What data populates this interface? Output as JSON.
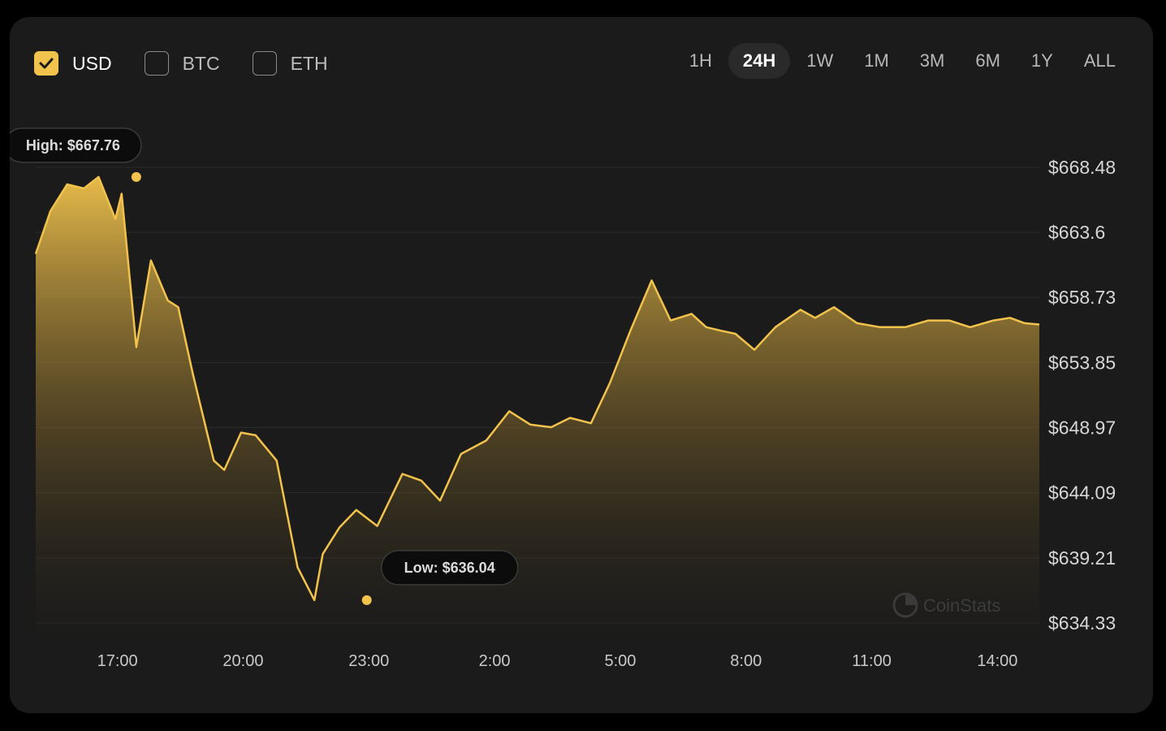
{
  "currencies": [
    {
      "label": "USD",
      "checked": true
    },
    {
      "label": "BTC",
      "checked": false
    },
    {
      "label": "ETH",
      "checked": false
    }
  ],
  "ranges": [
    {
      "label": "1H",
      "active": false
    },
    {
      "label": "24H",
      "active": true
    },
    {
      "label": "1W",
      "active": false
    },
    {
      "label": "1M",
      "active": false
    },
    {
      "label": "3M",
      "active": false
    },
    {
      "label": "6M",
      "active": false
    },
    {
      "label": "1Y",
      "active": false
    },
    {
      "label": "ALL",
      "active": false
    }
  ],
  "colors": {
    "accent": "#f1c34d",
    "card": "#1b1b1b",
    "grid": "#2a2a2a"
  },
  "watermark": "CoinStats",
  "chart_data": {
    "type": "area",
    "series": [
      {
        "currency": "USD",
        "x": [
          15.05,
          15.4,
          15.8,
          16.2,
          16.55,
          16.95,
          17.1,
          17.45,
          17.8,
          18.2,
          18.45,
          18.8,
          19.3,
          19.55,
          19.95,
          20.3,
          20.8,
          21.3,
          21.7,
          21.9,
          22.3,
          22.7,
          23.2,
          23.8,
          24.25,
          24.7,
          25.2,
          25.8,
          26.35,
          26.85,
          27.35,
          27.8,
          28.3,
          28.75,
          29.25,
          29.75,
          30.2,
          30.7,
          31.05,
          31.45,
          31.75,
          32.2,
          32.7,
          33.3,
          33.65,
          34.1,
          34.65,
          35.2,
          35.8,
          36.35,
          36.85,
          37.35,
          37.9,
          38.3,
          38.65,
          39.0
        ],
        "y": [
          662.0,
          665.2,
          667.2,
          666.9,
          667.76,
          664.6,
          666.5,
          655.0,
          661.5,
          658.5,
          658.0,
          653.0,
          646.5,
          645.8,
          648.6,
          648.4,
          646.5,
          638.5,
          636.04,
          639.5,
          641.5,
          642.8,
          641.6,
          645.5,
          645.0,
          643.5,
          647.0,
          648.0,
          650.2,
          649.2,
          649.0,
          649.7,
          649.3,
          652.3,
          656.3,
          660.0,
          657.0,
          657.5,
          656.5,
          656.2,
          656.0,
          654.8,
          656.5,
          657.8,
          657.2,
          658.0,
          656.8,
          656.5,
          656.5,
          657.0,
          657.0,
          656.5,
          657.0,
          657.2,
          656.8,
          656.7
        ]
      }
    ],
    "xlim": [
      15.05,
      39.0
    ],
    "ylim": [
      634.33,
      668.48
    ],
    "y_ticks": [
      "$668.48",
      "$663.6",
      "$658.73",
      "$653.85",
      "$648.97",
      "$644.09",
      "$639.21",
      "$634.33"
    ],
    "y_tick_values": [
      668.48,
      663.6,
      658.73,
      653.85,
      648.97,
      644.09,
      639.21,
      634.33
    ],
    "x_ticks": [
      "17:00",
      "20:00",
      "23:00",
      "2:00",
      "5:00",
      "8:00",
      "11:00",
      "14:00"
    ],
    "x_tick_values": [
      17,
      20,
      23,
      26,
      29,
      32,
      35,
      38
    ],
    "annotations": [
      {
        "text": "High: $667.76",
        "x": 17.45,
        "y": 667.76,
        "kind": "high"
      },
      {
        "text": "Low: $636.04",
        "x": 22.95,
        "y": 636.04,
        "kind": "low"
      }
    ],
    "grid": true
  }
}
